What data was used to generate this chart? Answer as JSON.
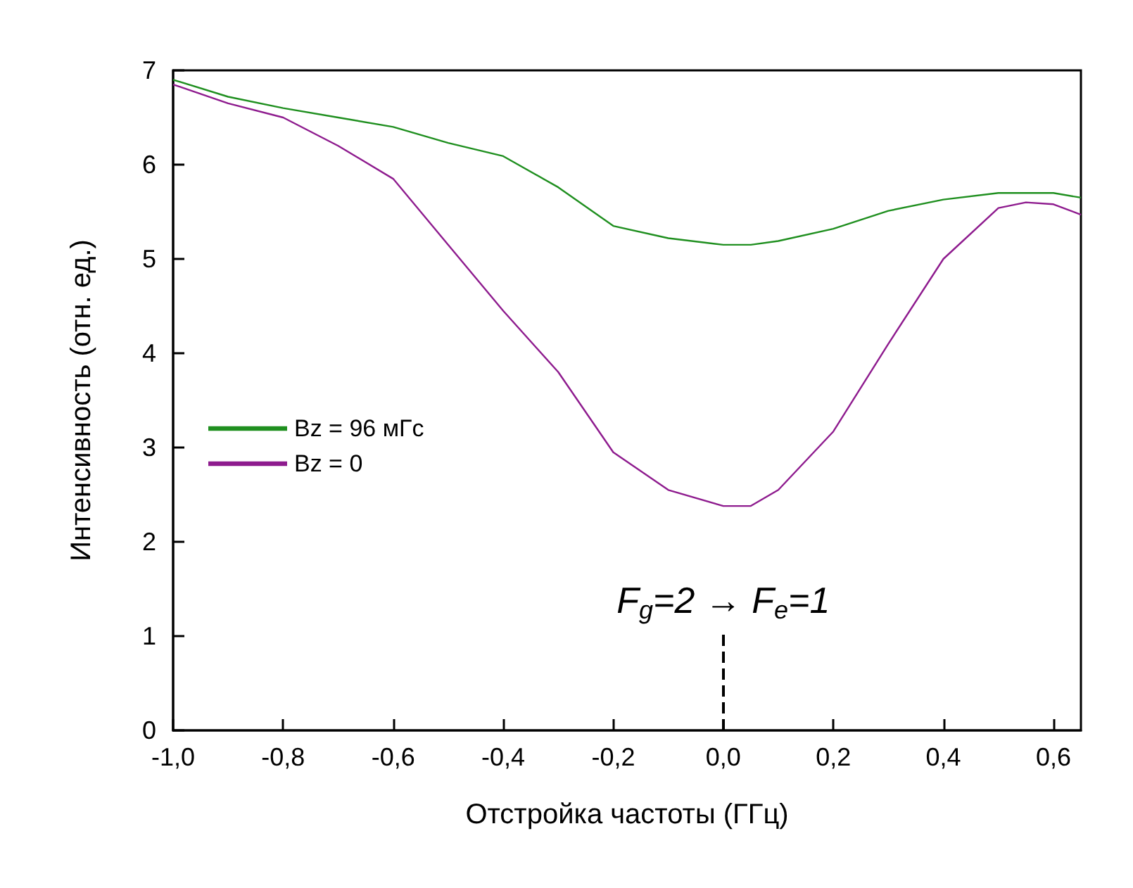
{
  "chart_data": {
    "type": "line",
    "xlabel": "Отстройка частоты (ГГц)",
    "ylabel": "Интенсивность (отн. ед.)",
    "x": [
      -1.0,
      -0.9,
      -0.8,
      -0.7,
      -0.6,
      -0.5,
      -0.4,
      -0.3,
      -0.2,
      -0.1,
      0.0,
      0.05,
      0.1,
      0.2,
      0.3,
      0.4,
      0.5,
      0.55,
      0.6,
      0.65
    ],
    "series": [
      {
        "name": "Bz = 96 мГс",
        "color": "#1f8f1f",
        "values": [
          6.9,
          6.72,
          6.6,
          6.5,
          6.4,
          6.23,
          6.09,
          5.76,
          5.35,
          5.22,
          5.15,
          5.15,
          5.19,
          5.32,
          5.51,
          5.63,
          5.7,
          5.7,
          5.7,
          5.65
        ]
      },
      {
        "name": "Bz = 0",
        "color": "#8e1b8e",
        "values": [
          6.85,
          6.65,
          6.5,
          6.2,
          5.85,
          5.15,
          4.45,
          3.8,
          2.95,
          2.55,
          2.38,
          2.38,
          2.55,
          3.17,
          4.1,
          5.0,
          5.54,
          5.6,
          5.58,
          5.47
        ]
      }
    ],
    "xlim": [
      -1.0,
      0.65
    ],
    "xticks": [
      {
        "value": -1.0,
        "label": "-1,0"
      },
      {
        "value": -0.8,
        "label": "-0,8"
      },
      {
        "value": -0.6,
        "label": "-0,6"
      },
      {
        "value": -0.4,
        "label": "-0,4"
      },
      {
        "value": -0.2,
        "label": "-0,2"
      },
      {
        "value": 0.0,
        "label": "0,0"
      },
      {
        "value": 0.2,
        "label": "0,2"
      },
      {
        "value": 0.4,
        "label": "0,4"
      },
      {
        "value": 0.6,
        "label": "0,6"
      }
    ],
    "ylim": [
      0,
      7
    ],
    "yticks": [
      0,
      1,
      2,
      3,
      4,
      5,
      6,
      7
    ],
    "ref_lines": [
      {
        "axis": "x",
        "value": 0.0,
        "line_style": "dashed",
        "color": "#000000"
      }
    ],
    "annotations": [
      "F$_{g}$=2 → F$_{e}$=1"
    ],
    "legend": "left",
    "grid": false,
    "marker": "none",
    "line_style": "solid"
  }
}
